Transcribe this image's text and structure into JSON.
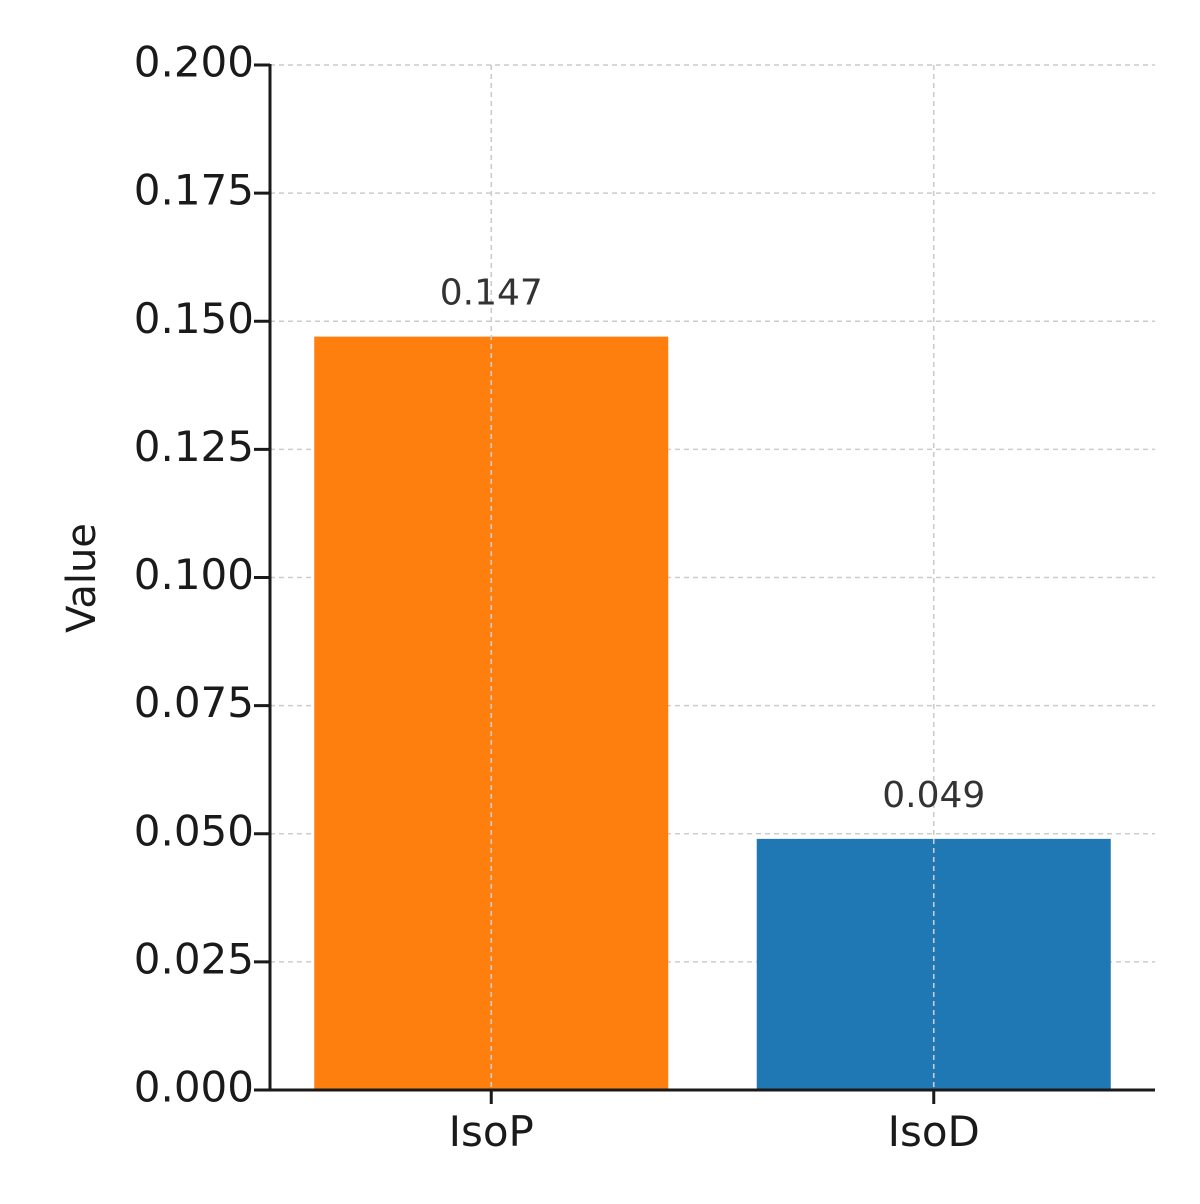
{
  "chart_data": {
    "type": "bar",
    "categories": [
      "IsoP",
      "IsoD"
    ],
    "values": [
      0.147,
      0.049
    ],
    "value_labels": [
      "0.147",
      "0.049"
    ],
    "bar_colors": [
      "#ff7f0e",
      "#1f77b4"
    ],
    "title": "",
    "xlabel": "",
    "ylabel": "Value",
    "ylim": [
      0,
      0.2
    ],
    "yticks": [
      0,
      0.025,
      0.05,
      0.075,
      0.1,
      0.125,
      0.15,
      0.175,
      0.2
    ],
    "ytick_labels": [
      "0.000",
      "0.025",
      "0.050",
      "0.075",
      "0.100",
      "0.125",
      "0.150",
      "0.175",
      "0.200"
    ],
    "grid": true,
    "legend": "none"
  }
}
